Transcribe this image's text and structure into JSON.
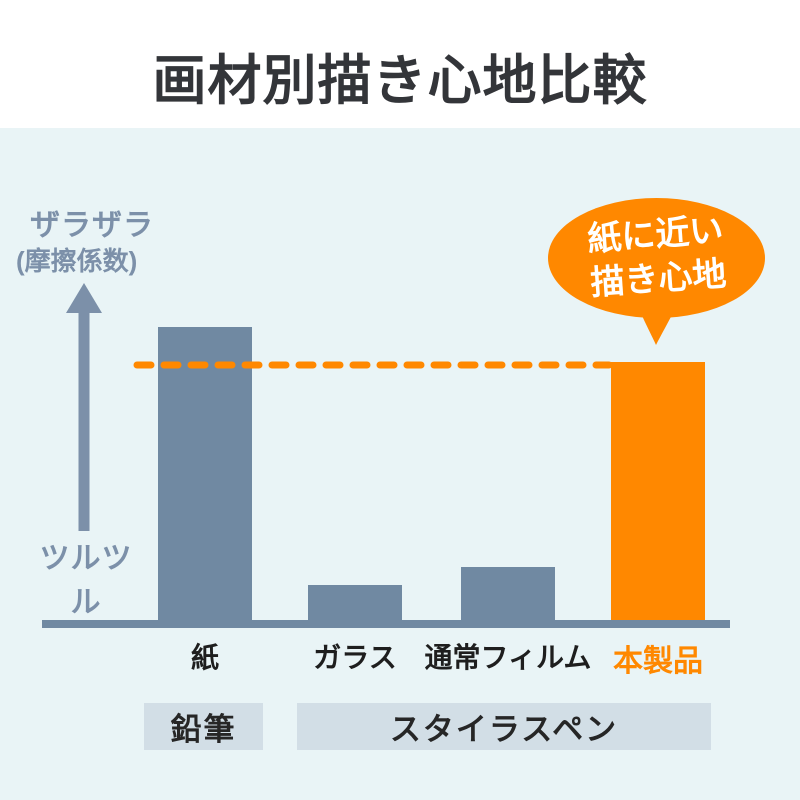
{
  "page": {
    "title": "画材別描き心地比較"
  },
  "colors": {
    "background": "#ffffff",
    "panel": "#e9f4f6",
    "bar_gray": "#7089a2",
    "accent_orange": "#ff8800",
    "axis": "#7089a2",
    "y_label_text": "#7c90a9",
    "category_text": "#1e1e1e",
    "group_box_bg": "#d2dee6",
    "group_box_text": "#262626",
    "title_text": "#333539",
    "bubble_text": "#ffffff"
  },
  "y_axis": {
    "top_label": "ザラザラ",
    "top_sublabel": "(摩擦係数)",
    "bottom_label": "ツルツル"
  },
  "bubble": {
    "line1": "紙に近い",
    "line2": "描き心地"
  },
  "group_labels": {
    "pencil": "鉛筆",
    "stylus": "スタイラスペン"
  },
  "chart_data": {
    "type": "bar",
    "title": "画材別描き心地比較",
    "categories": [
      "紙",
      "ガラス",
      "通常フィルム",
      "本製品"
    ],
    "values": [
      100,
      12,
      18,
      88
    ],
    "series_colors": [
      "#7089a2",
      "#7089a2",
      "#7089a2",
      "#ff8800"
    ],
    "highlight_category": "本製品",
    "xlabel": "",
    "ylabel": "摩擦係数（上:ザラザラ 〜 下:ツルツル）",
    "ylim": [
      0,
      115
    ],
    "grid": false,
    "legend": "none",
    "reference_line": {
      "value": 88,
      "style": "dashed",
      "color": "#ff8800",
      "meaning": "本製品の摩擦係数は紙とほぼ同等"
    },
    "annotations": [
      {
        "text": "紙に近い 描き心地",
        "target": "本製品",
        "shape": "speech-bubble",
        "color": "#ff8800"
      }
    ],
    "x_group_labels": [
      {
        "label": "鉛筆",
        "categories": [
          "紙"
        ]
      },
      {
        "label": "スタイラスペン",
        "categories": [
          "ガラス",
          "通常フィルム",
          "本製品"
        ]
      }
    ]
  }
}
